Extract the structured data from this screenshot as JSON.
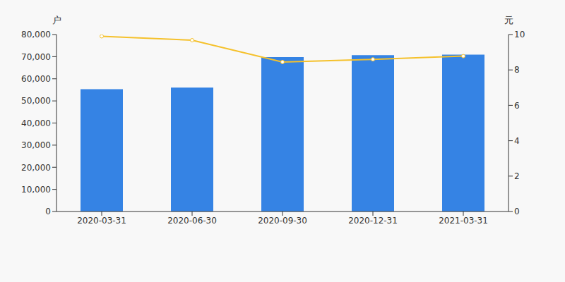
{
  "chart_data": {
    "type": "bar",
    "ylabel": "户",
    "y2label": "元",
    "categories": [
      "2020-03-31",
      "2020-06-30",
      "2020-09-30",
      "2020-12-31",
      "2021-03-31"
    ],
    "series": [
      {
        "name": "户",
        "type": "bar",
        "color": "#3583e4",
        "values": [
          55300,
          56000,
          69800,
          70700,
          70900
        ]
      },
      {
        "name": "元",
        "type": "line",
        "axis": "y2",
        "color": "#f5c12b",
        "marker": "circle",
        "values": [
          9.9,
          9.68,
          8.45,
          8.6,
          8.78
        ]
      }
    ],
    "ylim": [
      0,
      80000
    ],
    "yticks": [
      0,
      {
        "value": 10000,
        "label": "10,000"
      },
      {
        "value": 20000,
        "label": "20,000"
      },
      {
        "value": 30000,
        "label": "30,000"
      },
      {
        "value": 40000,
        "label": "40,000"
      },
      {
        "value": 50000,
        "label": "50,000"
      },
      {
        "value": 60000,
        "label": "60,000"
      },
      {
        "value": 70000,
        "label": "70,000"
      },
      {
        "value": 80000,
        "label": "80,000"
      }
    ],
    "y2lim": [
      0,
      10
    ],
    "y2ticks": [
      0,
      2,
      4,
      6,
      8,
      10
    ],
    "grid": false
  }
}
